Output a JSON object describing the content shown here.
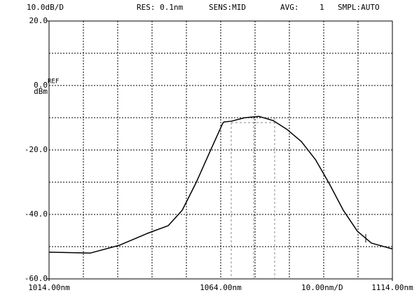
{
  "chart_data": {
    "type": "line",
    "header": [
      "10.0dB/D",
      "RES: 0.1nm",
      "SENS:MID",
      "AVG:",
      "1",
      "SMPL:AUTO"
    ],
    "ref_label": "REF",
    "y_unit": "dBm",
    "span_label": "10.00nm/D",
    "color": "#000000",
    "grid": true,
    "xlim": [
      1014,
      1114
    ],
    "ylim": [
      -60,
      20
    ],
    "xticks": [
      {
        "value": 1014,
        "label": "1014.00nm"
      },
      {
        "value": 1064,
        "label": "1064.00nm"
      },
      {
        "value": 1114,
        "label": "1114.00nm"
      }
    ],
    "yticks": [
      {
        "value": 20,
        "label": "20.0"
      },
      {
        "value": 0,
        "label": "0.0"
      },
      {
        "value": -20,
        "label": "-20.0"
      },
      {
        "value": -40,
        "label": "-40.0"
      },
      {
        "value": -60,
        "label": "-60.0"
      }
    ],
    "xgrid": [
      1024,
      1034,
      1044,
      1054,
      1064,
      1074,
      1084,
      1094,
      1104
    ],
    "ygrid": [
      10,
      -10,
      -30,
      -50
    ],
    "x": [
      1014,
      1026,
      1034.4,
      1042.6,
      1048.7,
      1052.8,
      1056.9,
      1061,
      1064.6,
      1065,
      1067,
      1071,
      1075.2,
      1079.3,
      1083.4,
      1087.5,
      1091.6,
      1095.6,
      1099.7,
      1103.8,
      1107.9,
      1114
    ],
    "values": [
      -51.7,
      -52,
      -49.6,
      -45.9,
      -43.5,
      -38.7,
      -30,
      -20.2,
      -11.7,
      -11.3,
      -11.1,
      -10,
      -9.6,
      -10.9,
      -13.7,
      -17.4,
      -23,
      -30.4,
      -38.7,
      -45.2,
      -48.9,
      -50.7
    ]
  }
}
